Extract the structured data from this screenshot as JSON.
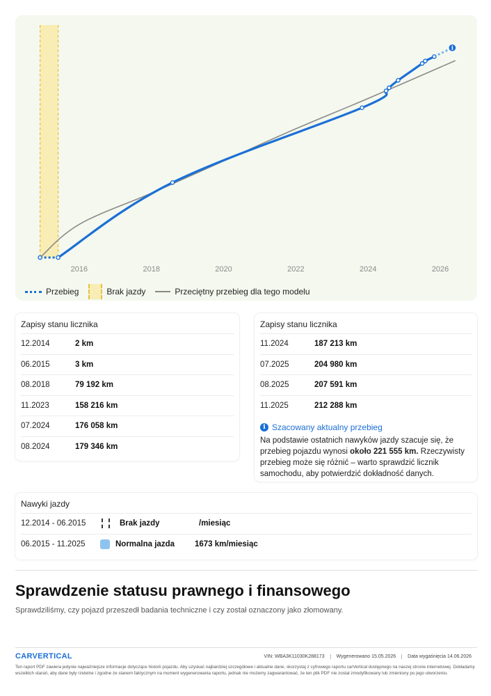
{
  "chart_data": {
    "type": "line",
    "x_ticks": [
      "2016",
      "2018",
      "2020",
      "2022",
      "2024",
      "2026"
    ],
    "ylim": [
      0,
      225000
    ],
    "grid": false,
    "no_driving_band": {
      "from": "12.2014",
      "to": "06.2015"
    },
    "series": [
      {
        "name": "Przebieg",
        "points": [
          {
            "x": "12.2014",
            "y": 2
          },
          {
            "x": "06.2015",
            "y": 3
          },
          {
            "x": "08.2018",
            "y": 79192
          },
          {
            "x": "11.2023",
            "y": 158216
          },
          {
            "x": "07.2024",
            "y": 176058
          },
          {
            "x": "08.2024",
            "y": 179346
          },
          {
            "x": "11.2024",
            "y": 187213
          },
          {
            "x": "07.2025",
            "y": 204980
          },
          {
            "x": "08.2025",
            "y": 207591
          },
          {
            "x": "11.2025",
            "y": 212288
          }
        ],
        "estimate": {
          "x": "05.2026",
          "y": 221555
        }
      },
      {
        "name": "Przeciętny przebieg dla tego modelu",
        "points": [
          {
            "x": "12.2014",
            "y": 0
          },
          {
            "x": "01.2016",
            "y": 35000
          },
          {
            "x": "01.2018",
            "y": 68000
          },
          {
            "x": "01.2020",
            "y": 102000
          },
          {
            "x": "01.2022",
            "y": 136000
          },
          {
            "x": "01.2024",
            "y": 168000
          },
          {
            "x": "06.2026",
            "y": 208000
          }
        ]
      }
    ],
    "legend": [
      "Przebieg",
      "Brak jazdy",
      "Przeciętny przebieg dla tego modelu"
    ],
    "legend_placement": "bottom-left",
    "colors": {
      "mileage": "#1a6fd6",
      "average": "#8a8a8a",
      "no_driving": "#f7edb5",
      "no_driving_border": "#e6c040"
    }
  },
  "legend": {
    "mileage": "Przebieg",
    "no_driving": "Brak jazdy",
    "average": "Przeciętny przebieg dla tego modelu"
  },
  "odometer_left": {
    "title": "Zapisy stanu licznika",
    "rows": [
      {
        "date": "12.2014",
        "value": "2 km"
      },
      {
        "date": "06.2015",
        "value": "3 km"
      },
      {
        "date": "08.2018",
        "value": "79 192 km"
      },
      {
        "date": "11.2023",
        "value": "158 216 km"
      },
      {
        "date": "07.2024",
        "value": "176 058 km"
      },
      {
        "date": "08.2024",
        "value": "179 346 km"
      }
    ]
  },
  "odometer_right": {
    "title": "Zapisy stanu licznika",
    "rows": [
      {
        "date": "11.2024",
        "value": "187 213 km"
      },
      {
        "date": "07.2025",
        "value": "204 980 km"
      },
      {
        "date": "08.2025",
        "value": "207 591 km"
      },
      {
        "date": "11.2025",
        "value": "212 288 km"
      }
    ],
    "estimate_title": "Szacowany aktualny przebieg",
    "estimate_text_1": "Na podstawie ostatnich nawyków jazdy szacuje się, że przebieg pojazdu wynosi ",
    "estimate_bold": "około 221 555 km.",
    "estimate_text_2": " Rzeczywisty przebieg może się różnić – warto sprawdzić licznik samochodu, aby potwierdzić dokładność danych."
  },
  "driving_habits": {
    "title": "Nawyki jazdy",
    "rows": [
      {
        "period": "12.2014 - 06.2015",
        "icon": "no-driving-icon",
        "label": "Brak jazdy",
        "value": "/miesiąc"
      },
      {
        "period": "06.2015 - 11.2025",
        "icon": "normal-driving-icon",
        "label": "Normalna jazda",
        "value": "1673 km/miesiąc"
      }
    ]
  },
  "legal": {
    "title": "Sprawdzenie statusu prawnego i finansowego",
    "subtitle": "Sprawdziliśmy, czy pojazd przeszedł badania techniczne i czy został oznaczony jako złomowany."
  },
  "footer": {
    "logo": "CARVERTICAL",
    "vin": "VIN: WBA3K11030K288173",
    "generated": "Wygenerowano  15.05.2026",
    "expires": "Data wygaśnięcia  14.06.2026",
    "disclaimer": "Ten raport PDF zawiera jedynie najważniejsze informacje dotyczące historii pojazdu. Aby uzyskać najbardziej szczegółowe i aktualne dane, skorzystaj z cyfrowego raportu carVertical dostępnego na naszej stronie internetowej. Dokładamy wszelkich starań, aby dane były rzetelne i zgodne ze stanem faktycznym na moment wygenerowania raportu, jednak nie możemy zagwarantować, że ten plik PDF nie został zmodyfikowany lub zmieniony po jego utworzeniu."
  }
}
